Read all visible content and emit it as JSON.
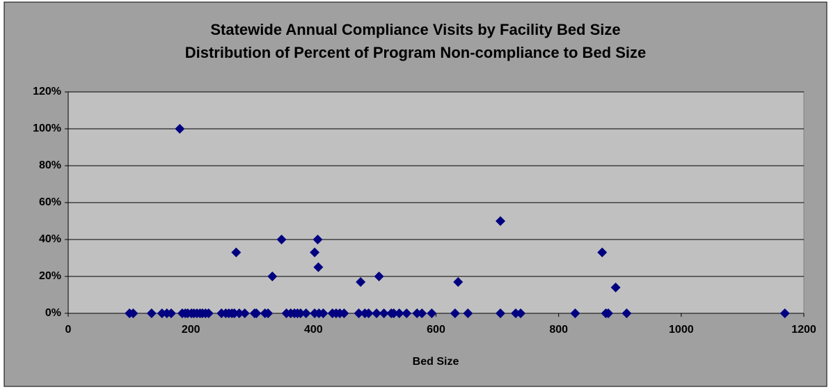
{
  "chart_data": {
    "type": "scatter",
    "title": "Statewide Annual Compliance Visits by Facility Bed Size",
    "subtitle": "Distribution of Percent of Program Non-compliance to Bed Size",
    "x_label": "Bed Size",
    "color": "#000080",
    "xlim": [
      0,
      1200
    ],
    "xticks": [
      0,
      200,
      400,
      600,
      800,
      1000,
      1200
    ],
    "ylim": [
      0,
      120
    ],
    "yticks": [
      {
        "value": 0,
        "label": "0%"
      },
      {
        "value": 20,
        "label": "20%"
      },
      {
        "value": 40,
        "label": "40%"
      },
      {
        "value": 60,
        "label": "60%"
      },
      {
        "value": 80,
        "label": "80%"
      },
      {
        "value": 100,
        "label": "100%"
      },
      {
        "value": 120,
        "label": "120%"
      }
    ],
    "grid": true,
    "x": [
      182,
      274,
      333,
      348,
      402,
      407,
      408,
      477,
      507,
      636,
      705,
      871,
      893,
      100,
      106,
      136,
      153,
      161,
      168,
      186,
      191,
      195,
      201,
      205,
      210,
      215,
      219,
      224,
      229,
      250,
      257,
      262,
      267,
      271,
      279,
      288,
      304,
      307,
      321,
      326,
      356,
      363,
      369,
      374,
      379,
      388,
      402,
      409,
      416,
      431,
      437,
      443,
      450,
      474,
      484,
      490,
      503,
      515,
      527,
      531,
      540,
      552,
      569,
      577,
      593,
      631,
      652,
      705,
      730,
      738,
      827,
      877,
      881,
      911,
      1169
    ],
    "values": [
      100,
      33,
      20,
      40,
      33,
      40,
      25,
      17,
      20,
      17,
      50,
      33,
      14,
      0,
      0,
      0,
      0,
      0,
      0,
      0,
      0,
      0,
      0,
      0,
      0,
      0,
      0,
      0,
      0,
      0,
      0,
      0,
      0,
      0,
      0,
      0,
      0,
      0,
      0,
      0,
      0,
      0,
      0,
      0,
      0,
      0,
      0,
      0,
      0,
      0,
      0,
      0,
      0,
      0,
      0,
      0,
      0,
      0,
      0,
      0,
      0,
      0,
      0,
      0,
      0,
      0,
      0,
      0,
      0,
      0,
      0,
      0,
      0,
      0,
      0
    ]
  }
}
